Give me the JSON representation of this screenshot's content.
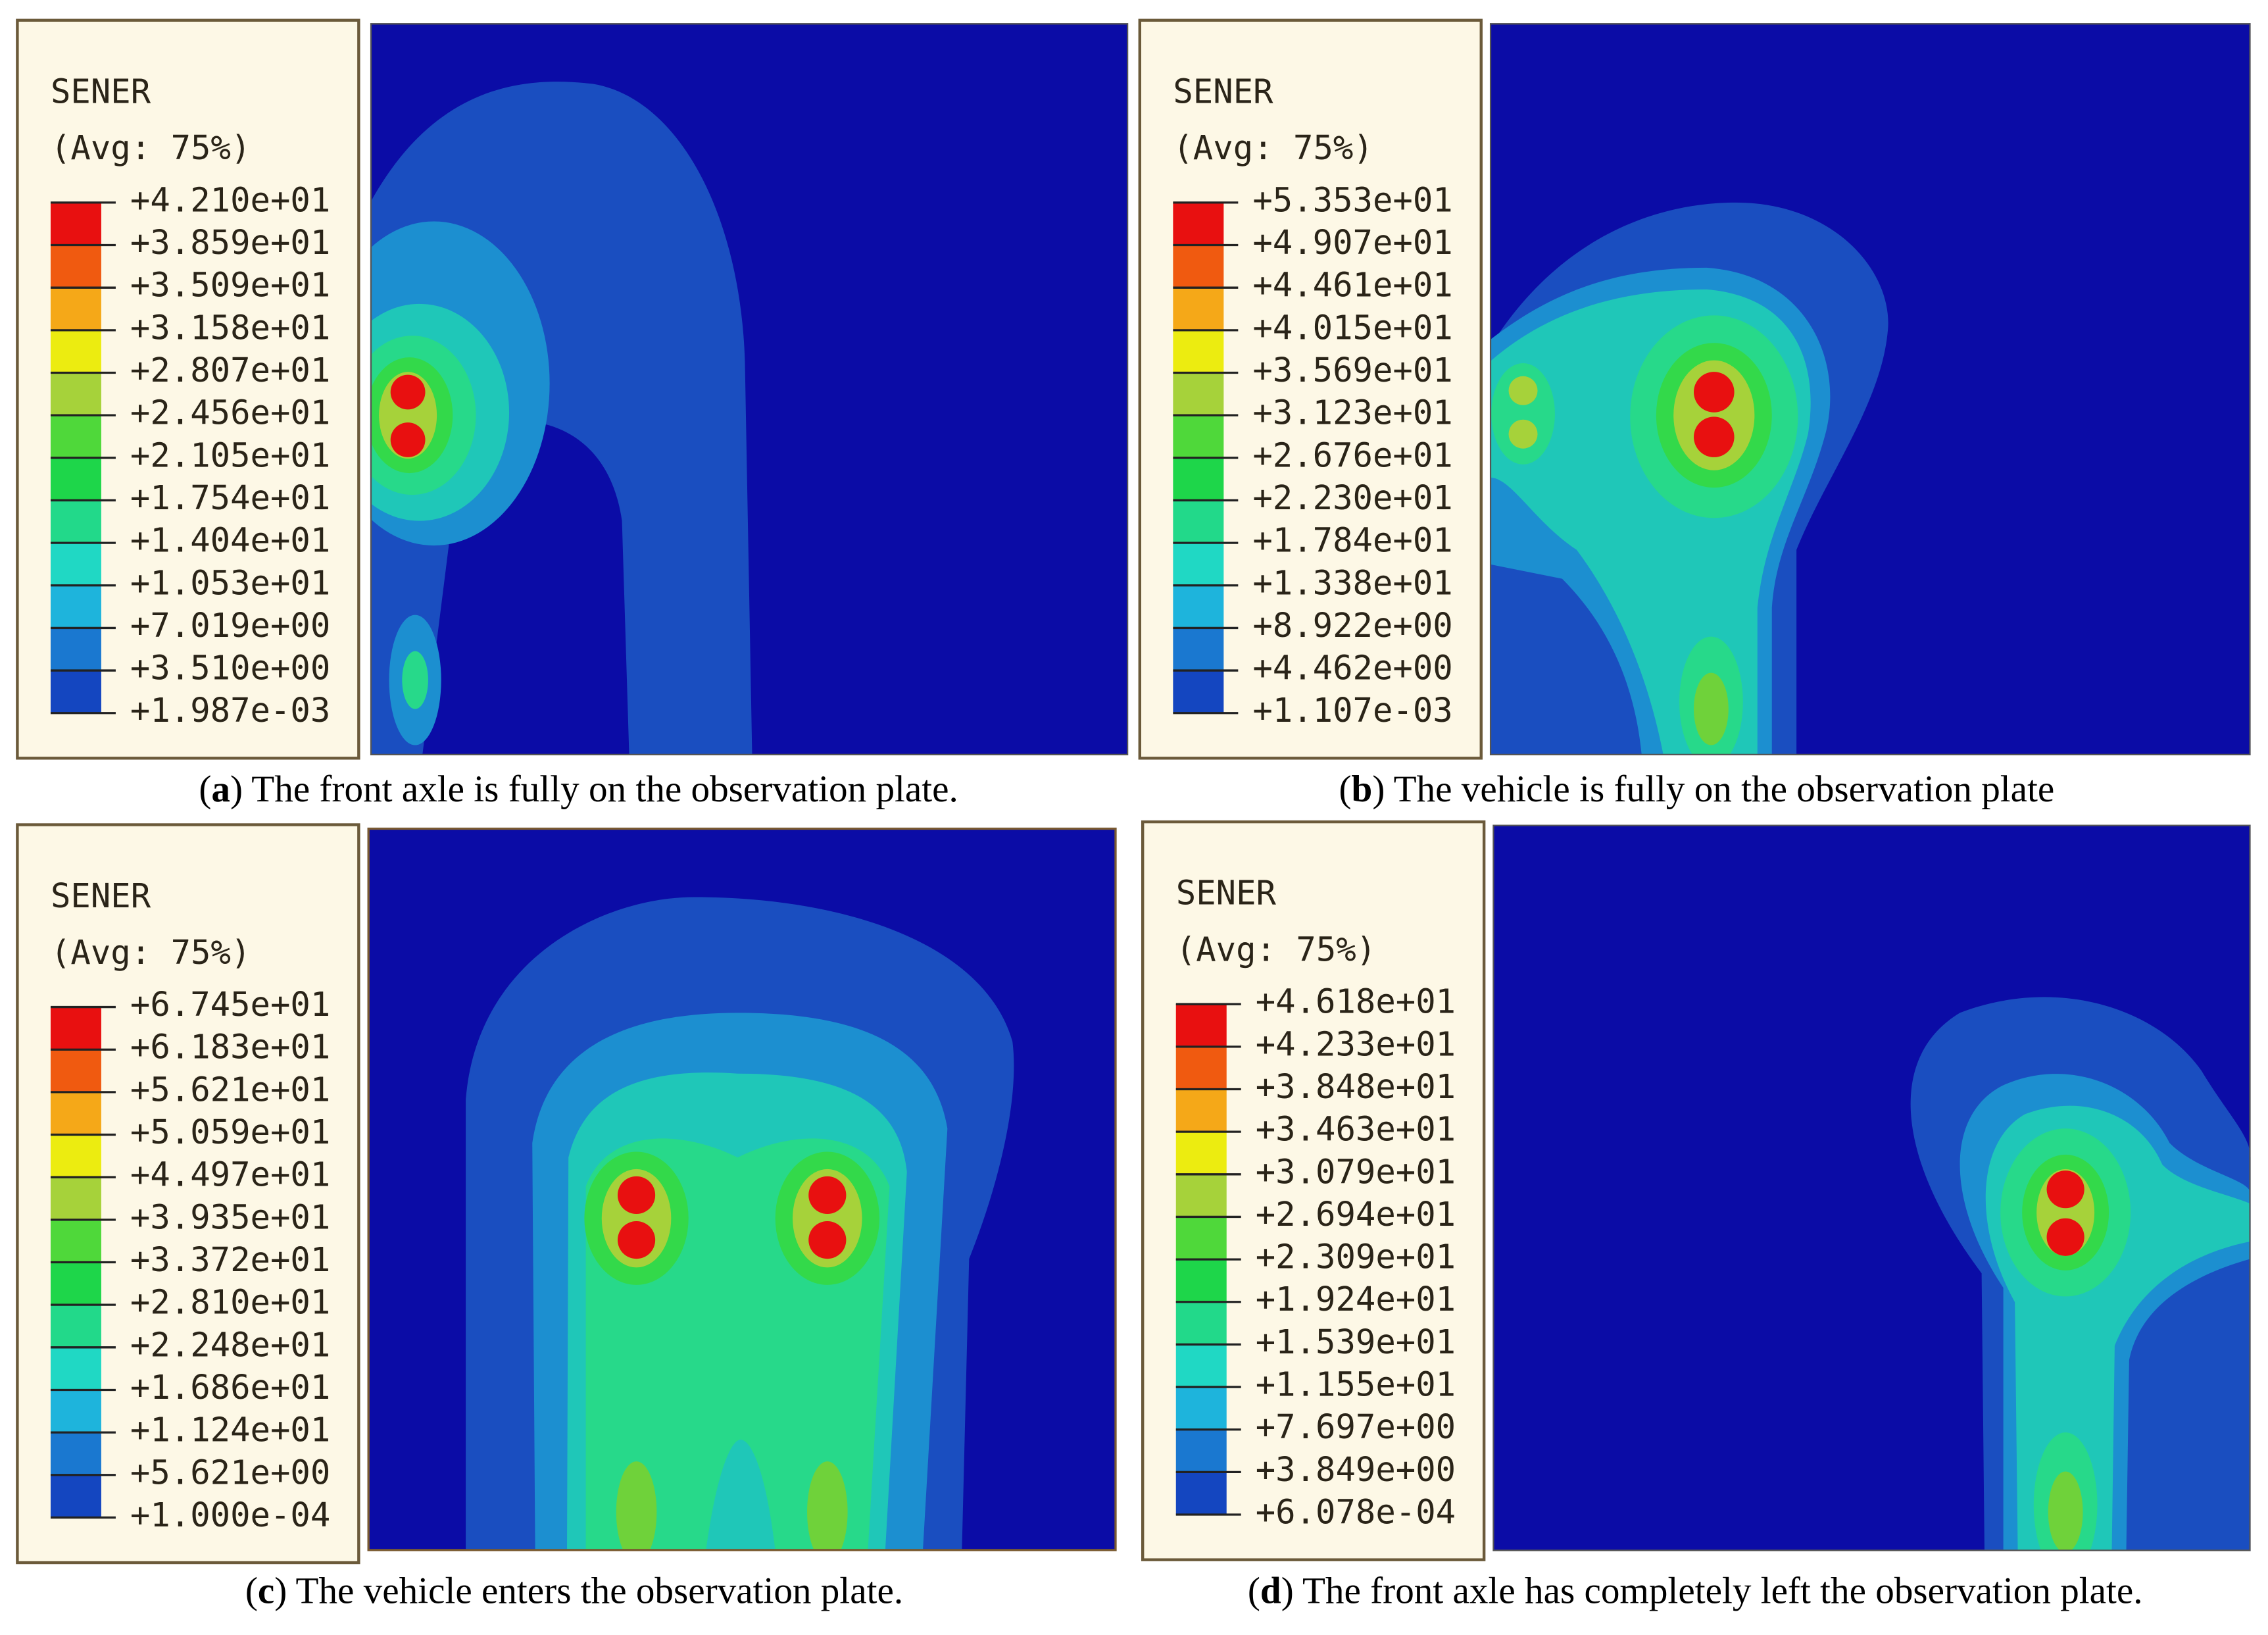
{
  "panels": [
    {
      "open": "(",
      "label": "a",
      "text": ") The front axle is fully on the observation plate.",
      "legend_title": "SENER",
      "legend_subtitle": "(Avg: 75%)",
      "legend_labels": [
        "+4.210e+01",
        "+3.859e+01",
        "+3.509e+01",
        "+3.158e+01",
        "+2.807e+01",
        "+2.456e+01",
        "+2.105e+01",
        "+1.754e+01",
        "+1.404e+01",
        "+1.053e+01",
        "+7.019e+00",
        "+3.510e+00",
        "+1.987e-03"
      ]
    },
    {
      "open": "(",
      "label": "b",
      "text": ") The vehicle is fully on the observation plate",
      "legend_title": "SENER",
      "legend_subtitle": "(Avg: 75%)",
      "legend_labels": [
        "+5.353e+01",
        "+4.907e+01",
        "+4.461e+01",
        "+4.015e+01",
        "+3.569e+01",
        "+3.123e+01",
        "+2.676e+01",
        "+2.230e+01",
        "+1.784e+01",
        "+1.338e+01",
        "+8.922e+00",
        "+4.462e+00",
        "+1.107e-03"
      ]
    },
    {
      "open": "(",
      "label": "c",
      "text": ") The vehicle enters the observation plate.",
      "legend_title": "SENER",
      "legend_subtitle": "(Avg: 75%)",
      "legend_labels": [
        "+6.745e+01",
        "+6.183e+01",
        "+5.621e+01",
        "+5.059e+01",
        "+4.497e+01",
        "+3.935e+01",
        "+3.372e+01",
        "+2.810e+01",
        "+2.248e+01",
        "+1.686e+01",
        "+1.124e+01",
        "+5.621e+00",
        "+1.000e-04"
      ]
    },
    {
      "open": "(",
      "label": "d",
      "text": ") The front axle has completely left the observation plate.",
      "legend_title": "SENER",
      "legend_subtitle": "(Avg: 75%)",
      "legend_labels": [
        "+4.618e+01",
        "+4.233e+01",
        "+3.848e+01",
        "+3.463e+01",
        "+3.079e+01",
        "+2.694e+01",
        "+2.309e+01",
        "+1.924e+01",
        "+1.539e+01",
        "+1.155e+01",
        "+7.697e+00",
        "+3.849e+00",
        "+6.078e-04"
      ]
    }
  ]
}
